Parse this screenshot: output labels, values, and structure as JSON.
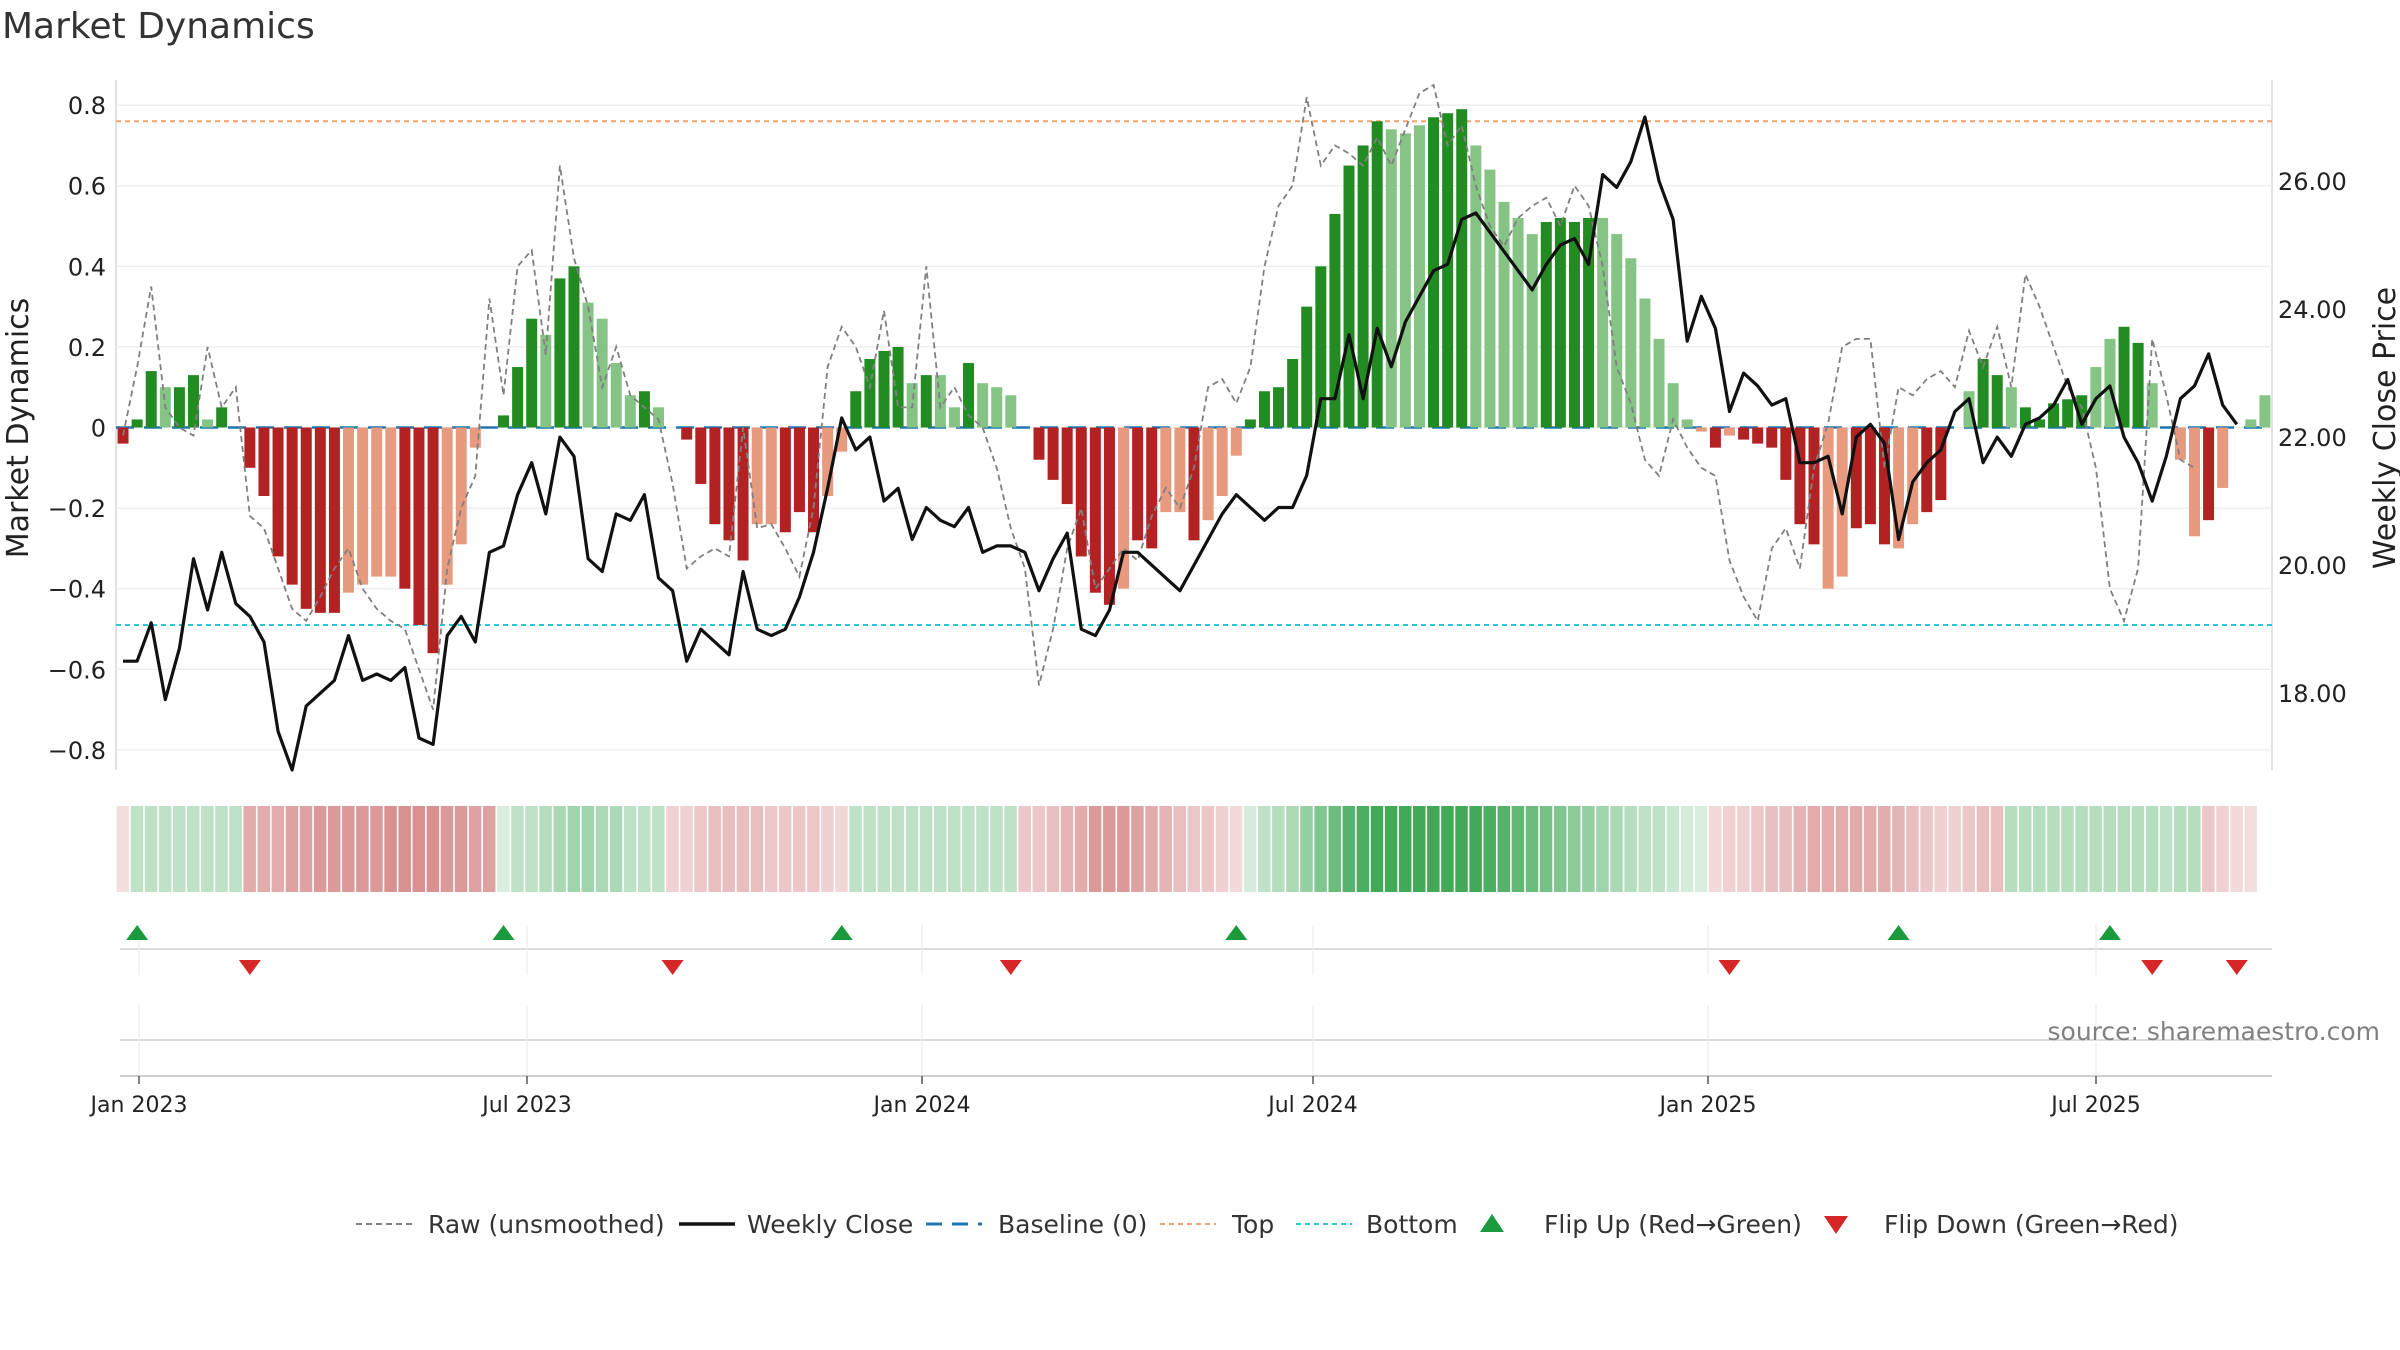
{
  "chart_data": {
    "type": "bar",
    "title": "Market Dynamics",
    "ylabel_left": "Market Dynamics",
    "ylabel_right": "Weekly Close Price",
    "ylim_left": [
      -0.85,
      0.85
    ],
    "ylim_right": [
      16.8,
      27.5
    ],
    "yticks_left": [
      "0.8",
      "0.6",
      "0.4",
      "0.2",
      "0",
      "−0.2",
      "−0.4",
      "−0.6",
      "−0.8"
    ],
    "yticks_right": [
      "26.00",
      "24.00",
      "22.00",
      "20.00",
      "18.00"
    ],
    "x_tick_labels": [
      "Jan 2023",
      "Jul 2023",
      "Jan 2024",
      "Jul 2024",
      "Jan 2025",
      "Jul 2025"
    ],
    "reference_lines": {
      "top": 0.76,
      "bottom": -0.49,
      "baseline": 0
    },
    "series": [
      {
        "name": "Raw (unsmoothed)",
        "style": "dashed-gray"
      },
      {
        "name": "Weekly Close",
        "style": "solid-black"
      },
      {
        "name": "Baseline (0)",
        "style": "dashed-blue"
      },
      {
        "name": "Top",
        "style": "dotted-orange"
      },
      {
        "name": "Bottom",
        "style": "dotted-cyan"
      },
      {
        "name": "Flip Up (Red→Green)",
        "style": "green-triangle-up"
      },
      {
        "name": "Flip Down (Green→Red)",
        "style": "red-triangle-down"
      }
    ],
    "bars_smoothed": [
      -0.04,
      0.02,
      0.14,
      0.1,
      0.1,
      0.13,
      0.02,
      0.05,
      0,
      -0.1,
      -0.17,
      -0.32,
      -0.39,
      -0.45,
      -0.46,
      -0.46,
      -0.41,
      -0.39,
      -0.37,
      -0.37,
      -0.4,
      -0.49,
      -0.56,
      -0.39,
      -0.29,
      -0.05,
      0,
      0.03,
      0.15,
      0.27,
      0.23,
      0.37,
      0.4,
      0.31,
      0.27,
      0.16,
      0.08,
      0.09,
      0.05,
      0,
      -0.03,
      -0.14,
      -0.24,
      -0.28,
      -0.33,
      -0.24,
      -0.24,
      -0.26,
      -0.21,
      -0.26,
      -0.17,
      -0.06,
      0.09,
      0.17,
      0.19,
      0.2,
      0.11,
      0.13,
      0.13,
      0.05,
      0.16,
      0.11,
      0.1,
      0.08,
      0,
      -0.08,
      -0.13,
      -0.19,
      -0.32,
      -0.41,
      -0.44,
      -0.4,
      -0.28,
      -0.3,
      -0.21,
      -0.21,
      -0.28,
      -0.23,
      -0.17,
      -0.07,
      0.02,
      0.09,
      0.1,
      0.17,
      0.3,
      0.4,
      0.53,
      0.65,
      0.7,
      0.76,
      0.74,
      0.73,
      0.75,
      0.77,
      0.78,
      0.79,
      0.7,
      0.64,
      0.56,
      0.52,
      0.48,
      0.51,
      0.52,
      0.51,
      0.52,
      0.52,
      0.48,
      0.42,
      0.32,
      0.22,
      0.11,
      0.02,
      -0.01,
      -0.05,
      -0.02,
      -0.03,
      -0.04,
      -0.05,
      -0.13,
      -0.24,
      -0.29,
      -0.4,
      -0.37,
      -0.25,
      -0.24,
      -0.29,
      -0.3,
      -0.24,
      -0.21,
      -0.18,
      0,
      0.09,
      0.17,
      0.13,
      0.1,
      0.05,
      0.02,
      0.06,
      0.07,
      0.08,
      0.15,
      0.22,
      0.25,
      0.21,
      0.11,
      0,
      -0.08,
      -0.27,
      -0.23,
      -0.15,
      0,
      0.02,
      0.08
    ],
    "bars_dark": [
      1,
      1,
      1,
      0,
      1,
      1,
      0,
      1,
      0,
      1,
      1,
      1,
      1,
      1,
      1,
      1,
      0,
      0,
      0,
      0,
      1,
      1,
      1,
      0,
      0,
      0,
      0,
      1,
      1,
      1,
      0,
      1,
      1,
      0,
      0,
      0,
      0,
      1,
      0,
      0,
      1,
      1,
      1,
      1,
      1,
      0,
      0,
      1,
      1,
      1,
      0,
      0,
      1,
      1,
      1,
      1,
      0,
      1,
      0,
      0,
      1,
      0,
      0,
      0,
      0,
      1,
      1,
      1,
      1,
      1,
      1,
      0,
      1,
      1,
      0,
      0,
      1,
      0,
      0,
      0,
      1,
      1,
      1,
      1,
      1,
      1,
      1,
      1,
      1,
      1,
      0,
      0,
      0,
      1,
      1,
      1,
      0,
      0,
      0,
      0,
      0,
      1,
      1,
      1,
      1,
      0,
      0,
      0,
      0,
      0,
      0,
      0,
      0,
      1,
      0,
      1,
      1,
      1,
      1,
      1,
      1,
      0,
      0,
      1,
      1,
      1,
      0,
      0,
      1,
      1,
      1,
      0,
      1,
      1,
      0,
      1,
      1,
      1,
      1,
      1,
      0,
      0,
      1,
      1,
      0,
      1,
      0,
      0,
      1
    ],
    "raw_unsmoothed": [
      -0.02,
      0.15,
      0.35,
      0.05,
      0,
      -0.02,
      0.2,
      0.05,
      0.1,
      -0.22,
      -0.25,
      -0.35,
      -0.45,
      -0.48,
      -0.42,
      -0.35,
      -0.3,
      -0.4,
      -0.45,
      -0.48,
      -0.5,
      -0.6,
      -0.7,
      -0.35,
      -0.2,
      -0.12,
      0.32,
      0.08,
      0.4,
      0.44,
      0.18,
      0.65,
      0.42,
      0.3,
      0.1,
      0.2,
      0.08,
      0.05,
      0.02,
      -0.14,
      -0.35,
      -0.32,
      -0.3,
      -0.32,
      0,
      -0.25,
      -0.24,
      -0.3,
      -0.37,
      -0.2,
      0.15,
      0.25,
      0.2,
      0.1,
      0.29,
      0.05,
      0.05,
      0.4,
      0.05,
      0.1,
      0.03,
      0,
      -0.1,
      -0.25,
      -0.35,
      -0.64,
      -0.5,
      -0.3,
      -0.2,
      -0.4,
      -0.35,
      -0.3,
      -0.33,
      -0.22,
      -0.15,
      -0.2,
      -0.1,
      0.1,
      0.12,
      0.06,
      0.15,
      0.4,
      0.55,
      0.6,
      0.82,
      0.65,
      0.7,
      0.68,
      0.65,
      0.72,
      0.65,
      0.74,
      0.83,
      0.85,
      0.7,
      0.75,
      0.6,
      0.5,
      0.45,
      0.52,
      0.55,
      0.57,
      0.5,
      0.6,
      0.55,
      0.4,
      0.15,
      0.06,
      -0.08,
      -0.12,
      0.02,
      -0.05,
      -0.1,
      -0.12,
      -0.33,
      -0.42,
      -0.48,
      -0.3,
      -0.25,
      -0.35,
      -0.1,
      0.01,
      0.2,
      0.22,
      0.22,
      -0.1,
      0.1,
      0.08,
      0.12,
      0.14,
      0.1,
      0.24,
      0.15,
      0.25,
      0.1,
      0.38,
      0.3,
      0.2,
      0.1,
      0.05,
      -0.1,
      -0.4,
      -0.48,
      -0.35,
      0.22,
      0.08,
      -0.08,
      -0.1
    ],
    "weekly_close": [
      18.5,
      18.5,
      19.1,
      17.9,
      18.7,
      20.1,
      19.3,
      20.2,
      19.4,
      19.2,
      18.8,
      17.4,
      16.8,
      17.8,
      18.0,
      18.2,
      18.9,
      18.2,
      18.3,
      18.2,
      18.4,
      17.3,
      17.2,
      18.9,
      19.2,
      18.8,
      20.2,
      20.3,
      21.1,
      21.6,
      20.8,
      22.0,
      21.7,
      20.1,
      19.9,
      20.8,
      20.7,
      21.1,
      19.8,
      19.6,
      18.5,
      19.0,
      18.8,
      18.6,
      19.9,
      19.0,
      18.9,
      19.0,
      19.5,
      20.2,
      21.2,
      22.3,
      21.8,
      22.0,
      21.0,
      21.2,
      20.4,
      20.9,
      20.7,
      20.6,
      20.9,
      20.2,
      20.3,
      20.3,
      20.2,
      19.6,
      20.1,
      20.5,
      19.0,
      18.9,
      19.3,
      20.2,
      20.2,
      20.0,
      19.8,
      19.6,
      20.0,
      20.4,
      20.8,
      21.1,
      20.9,
      20.7,
      20.9,
      20.9,
      21.4,
      22.6,
      22.6,
      23.6,
      22.6,
      23.7,
      23.1,
      23.8,
      24.2,
      24.6,
      24.7,
      25.4,
      25.5,
      25.2,
      24.9,
      24.6,
      24.3,
      24.7,
      25.0,
      25.1,
      24.7,
      26.1,
      25.9,
      26.3,
      27.0,
      26.0,
      25.4,
      23.5,
      24.2,
      23.7,
      22.4,
      23.0,
      22.8,
      22.5,
      22.6,
      21.6,
      21.6,
      21.7,
      20.8,
      22.0,
      22.2,
      21.9,
      20.4,
      21.3,
      21.6,
      21.8,
      22.4,
      22.6,
      21.6,
      22.0,
      21.7,
      22.2,
      22.3,
      22.5,
      22.9,
      22.2,
      22.6,
      22.8,
      22.0,
      21.6,
      21.0,
      21.7,
      22.6,
      22.8,
      23.3,
      22.5,
      22.2
    ]
  },
  "signal_strip": {
    "shades": [
      0.18,
      0.3,
      0.3,
      0.3,
      0.3,
      0.3,
      0.3,
      0.3,
      0.3,
      0.45,
      0.45,
      0.45,
      0.5,
      0.5,
      0.55,
      0.55,
      0.55,
      0.55,
      0.55,
      0.6,
      0.6,
      0.6,
      0.6,
      0.55,
      0.55,
      0.5,
      0.5,
      0.18,
      0.3,
      0.3,
      0.35,
      0.4,
      0.45,
      0.45,
      0.4,
      0.4,
      0.3,
      0.3,
      0.3,
      0.25,
      0.25,
      0.3,
      0.35,
      0.35,
      0.35,
      0.35,
      0.3,
      0.3,
      0.3,
      0.3,
      0.25,
      0.22,
      0.3,
      0.3,
      0.3,
      0.3,
      0.3,
      0.3,
      0.3,
      0.3,
      0.3,
      0.3,
      0.3,
      0.3,
      0.3,
      0.3,
      0.35,
      0.4,
      0.45,
      0.55,
      0.55,
      0.55,
      0.5,
      0.45,
      0.4,
      0.35,
      0.3,
      0.3,
      0.25,
      0.2,
      0.2,
      0.3,
      0.35,
      0.4,
      0.5,
      0.6,
      0.7,
      0.8,
      0.85,
      0.9,
      0.9,
      0.9,
      0.9,
      0.9,
      0.9,
      0.9,
      0.9,
      0.85,
      0.8,
      0.75,
      0.7,
      0.65,
      0.6,
      0.55,
      0.5,
      0.45,
      0.4,
      0.35,
      0.3,
      0.3,
      0.25,
      0.2,
      0.18,
      0.2,
      0.25,
      0.25,
      0.3,
      0.35,
      0.35,
      0.4,
      0.45,
      0.45,
      0.45,
      0.45,
      0.45,
      0.45,
      0.4,
      0.35,
      0.3,
      0.25,
      0.25,
      0.3,
      0.35,
      0.35,
      0.35,
      0.35,
      0.35,
      0.35,
      0.35,
      0.35,
      0.35,
      0.35,
      0.35,
      0.35,
      0.35,
      0.3,
      0.35,
      0.35,
      0.3,
      0.25,
      0.2,
      0.18
    ],
    "sign": [
      -1,
      1,
      1,
      1,
      1,
      1,
      1,
      1,
      1,
      -1,
      -1,
      -1,
      -1,
      -1,
      -1,
      -1,
      -1,
      -1,
      -1,
      -1,
      -1,
      -1,
      -1,
      -1,
      -1,
      -1,
      -1,
      1,
      1,
      1,
      1,
      1,
      1,
      1,
      1,
      1,
      1,
      1,
      1,
      -1,
      -1,
      -1,
      -1,
      -1,
      -1,
      -1,
      -1,
      -1,
      -1,
      -1,
      -1,
      -1,
      1,
      1,
      1,
      1,
      1,
      1,
      1,
      1,
      1,
      1,
      1,
      1,
      -1,
      -1,
      -1,
      -1,
      -1,
      -1,
      -1,
      -1,
      -1,
      -1,
      -1,
      -1,
      -1,
      -1,
      -1,
      -1,
      1,
      1,
      1,
      1,
      1,
      1,
      1,
      1,
      1,
      1,
      1,
      1,
      1,
      1,
      1,
      1,
      1,
      1,
      1,
      1,
      1,
      1,
      1,
      1,
      1,
      1,
      1,
      1,
      1,
      1,
      1,
      1,
      1,
      -1,
      -1,
      -1,
      -1,
      -1,
      -1,
      -1,
      -1,
      -1,
      -1,
      -1,
      -1,
      -1,
      -1,
      -1,
      -1,
      -1,
      -1,
      -1,
      -1,
      -1,
      1,
      1,
      1,
      1,
      1,
      1,
      1,
      1,
      1,
      1,
      1,
      1,
      1,
      1,
      -1,
      -1,
      -1,
      -1,
      -1,
      1,
      1,
      1
    ]
  },
  "flips": {
    "up": [
      1,
      27,
      51,
      79,
      126,
      141
    ],
    "down": [
      9,
      39,
      63,
      114,
      144,
      150
    ]
  },
  "source_text": "source: sharemaestro.com"
}
